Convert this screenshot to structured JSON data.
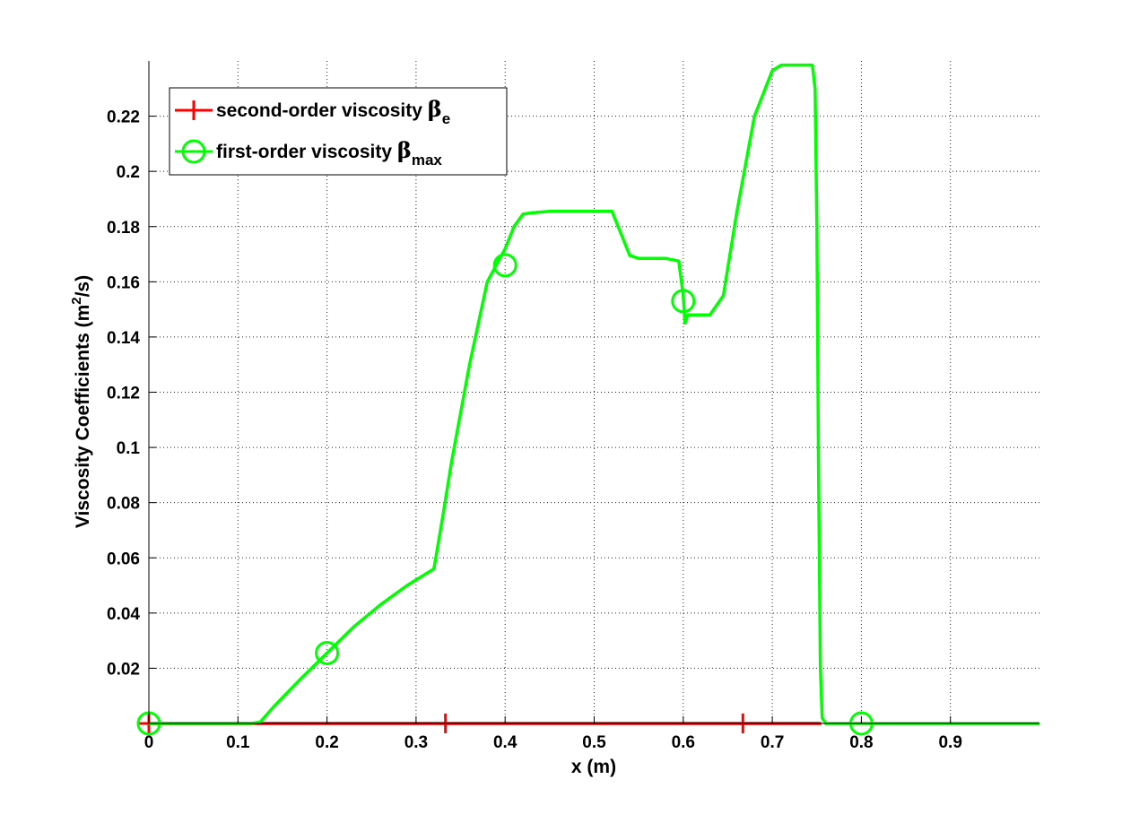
{
  "chart_data": {
    "type": "line",
    "xlabel": "x (m)",
    "ylabel_main": "Viscosity Coefficients (m",
    "ylabel_sup": "2",
    "ylabel_tail": "/s)",
    "xlim": [
      0,
      1
    ],
    "ylim": [
      0,
      0.24
    ],
    "xticks": [
      "0",
      "0.1",
      "0.2",
      "0.3",
      "0.4",
      "0.5",
      "0.6",
      "0.7",
      "0.8",
      "0.9"
    ],
    "xtick_values": [
      0,
      0.1,
      0.2,
      0.3,
      0.4,
      0.5,
      0.6,
      0.7,
      0.8,
      0.9
    ],
    "yticks": [
      "0.02",
      "0.04",
      "0.06",
      "0.08",
      "0.1",
      "0.12",
      "0.14",
      "0.16",
      "0.18",
      "0.2",
      "0.22"
    ],
    "ytick_values": [
      0.02,
      0.04,
      0.06,
      0.08,
      0.1,
      0.12,
      0.14,
      0.16,
      0.18,
      0.2,
      0.22
    ],
    "grid": true,
    "legend_position": "top-left",
    "series": [
      {
        "legend_main": "second-order viscosity ",
        "legend_symbol": "β",
        "legend_sub": "e",
        "color": "#ff0000",
        "marker": "plus",
        "x": [
          0,
          0.755
        ],
        "y": [
          0,
          0
        ],
        "markers_x": [
          0,
          0.333,
          0.667
        ],
        "markers_y": [
          0,
          0,
          0
        ]
      },
      {
        "legend_main": "first-order viscosity ",
        "legend_symbol": "β",
        "legend_sub": "max",
        "color": "#00ff00",
        "marker": "circle",
        "x": [
          0,
          0.115,
          0.125,
          0.14,
          0.17,
          0.2,
          0.23,
          0.26,
          0.29,
          0.305,
          0.32,
          0.33,
          0.34,
          0.36,
          0.38,
          0.4,
          0.41,
          0.42,
          0.43,
          0.45,
          0.5,
          0.52,
          0.53,
          0.54,
          0.55,
          0.58,
          0.595,
          0.6,
          0.602,
          0.605,
          0.61,
          0.63,
          0.645,
          0.66,
          0.68,
          0.7,
          0.71,
          0.72,
          0.735,
          0.74,
          0.745,
          0.748,
          0.75,
          0.752,
          0.754,
          0.756,
          0.76,
          0.8,
          1.0
        ],
        "y": [
          0,
          0,
          0.0005,
          0.006,
          0.016,
          0.0255,
          0.035,
          0.043,
          0.05,
          0.053,
          0.056,
          0.075,
          0.095,
          0.13,
          0.16,
          0.172,
          0.18,
          0.1845,
          0.185,
          0.1855,
          0.1855,
          0.1855,
          0.1775,
          0.1695,
          0.1685,
          0.1685,
          0.1675,
          0.155,
          0.145,
          0.148,
          0.148,
          0.148,
          0.155,
          0.185,
          0.22,
          0.2365,
          0.2385,
          0.2385,
          0.2385,
          0.2385,
          0.2385,
          0.23,
          0.18,
          0.09,
          0.02,
          0.002,
          0,
          0,
          0
        ],
        "markers_x": [
          0,
          0.2,
          0.4,
          0.6,
          0.8
        ],
        "markers_y": [
          0,
          0.0255,
          0.166,
          0.153,
          0
        ]
      }
    ]
  }
}
